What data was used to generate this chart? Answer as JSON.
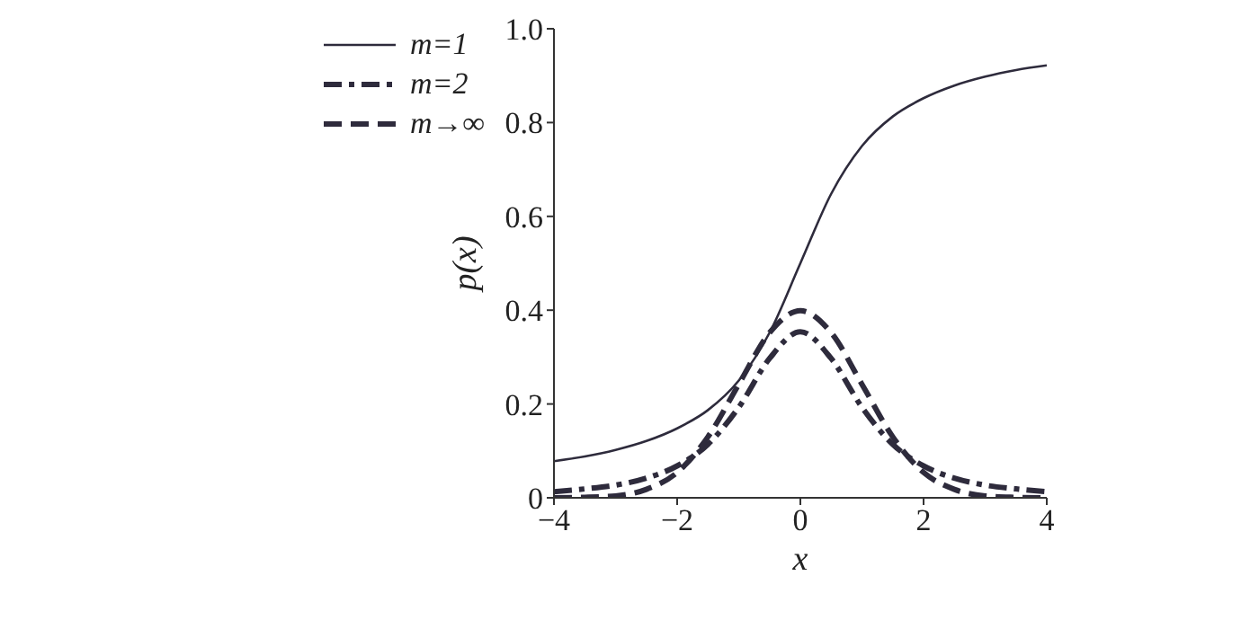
{
  "chart_data": {
    "type": "line",
    "xlabel": "x",
    "ylabel": "p(x)",
    "x": [
      -4,
      -3.5,
      -3,
      -2.5,
      -2,
      -1.5,
      -1,
      -0.5,
      0,
      0.5,
      1,
      1.5,
      2,
      2.5,
      3,
      3.5,
      4
    ],
    "series": [
      {
        "name": "m=1",
        "color": "#2e2b3c",
        "line_style": "solid",
        "values": [
          0.078,
          0.088,
          0.102,
          0.121,
          0.148,
          0.187,
          0.25,
          0.352,
          0.5,
          0.648,
          0.75,
          0.813,
          0.852,
          0.879,
          0.898,
          0.912,
          0.922
        ]
      },
      {
        "name": "m=2",
        "color": "#2e2b3c",
        "line_style": "dashdot",
        "values": [
          0.013,
          0.019,
          0.027,
          0.042,
          0.068,
          0.114,
          0.193,
          0.297,
          0.354,
          0.297,
          0.193,
          0.114,
          0.068,
          0.042,
          0.027,
          0.019,
          0.013
        ]
      },
      {
        "name": "m→∞",
        "color": "#2e2b3c",
        "line_style": "dashed",
        "values": [
          0.0,
          0.001,
          0.004,
          0.018,
          0.054,
          0.13,
          0.242,
          0.352,
          0.399,
          0.352,
          0.242,
          0.13,
          0.054,
          0.018,
          0.004,
          0.001,
          0.0
        ]
      }
    ],
    "xlim": [
      -4,
      4
    ],
    "xticks": [
      {
        "value": -4,
        "label": "−4"
      },
      {
        "value": -2,
        "label": "−2"
      },
      0,
      2,
      4
    ],
    "ylim": [
      0,
      1
    ],
    "yticks": [
      0,
      0.2,
      0.4,
      0.6,
      0.8,
      {
        "value": 1,
        "label": "1.0"
      }
    ],
    "grid": false,
    "legend": "top left",
    "marker": "none"
  }
}
